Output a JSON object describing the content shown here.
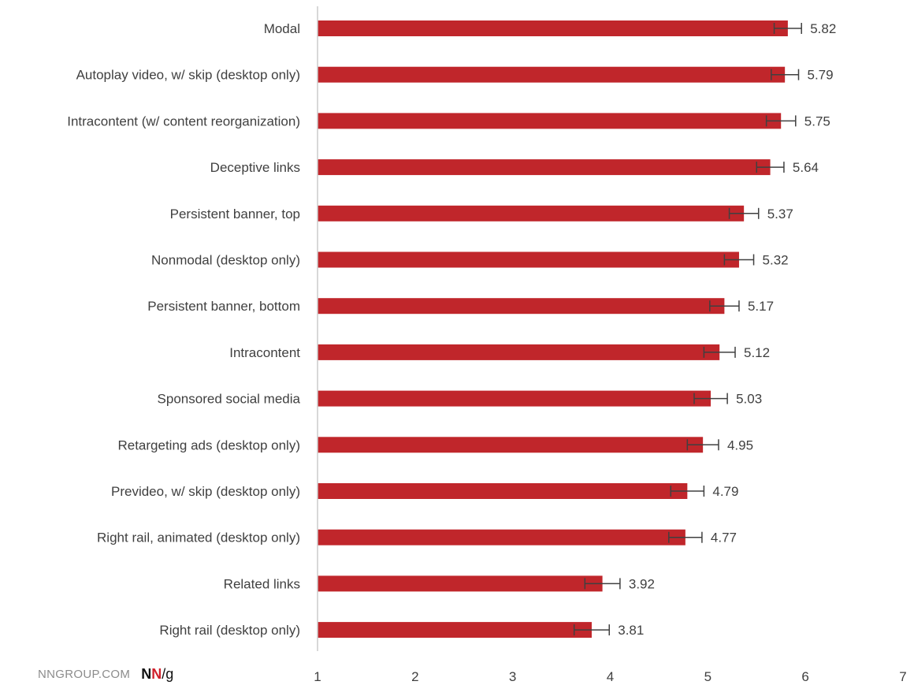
{
  "chart_data": {
    "type": "bar",
    "orientation": "horizontal",
    "categories": [
      "Modal",
      "Autoplay video, w/ skip (desktop only)",
      "Intracontent (w/ content reorganization)",
      "Deceptive links",
      "Persistent banner, top",
      "Nonmodal (desktop only)",
      "Persistent banner, bottom",
      "Intracontent",
      "Sponsored social media",
      "Retargeting ads (desktop only)",
      "Prevideo, w/ skip (desktop only)",
      "Right rail, animated (desktop only)",
      "Related links",
      "Right rail (desktop only)"
    ],
    "values": [
      5.82,
      5.79,
      5.75,
      5.64,
      5.37,
      5.32,
      5.17,
      5.12,
      5.03,
      4.95,
      4.79,
      4.77,
      3.92,
      3.81
    ],
    "value_labels": [
      "5.82",
      "5.79",
      "5.75",
      "5.64",
      "5.37",
      "5.32",
      "5.17",
      "5.12",
      "5.03",
      "4.95",
      "4.79",
      "4.77",
      "3.92",
      "3.81"
    ],
    "error": [
      0.14,
      0.14,
      0.15,
      0.14,
      0.15,
      0.15,
      0.15,
      0.16,
      0.17,
      0.16,
      0.17,
      0.17,
      0.18,
      0.18
    ],
    "xlim": [
      1,
      7
    ],
    "xticks": [
      "1",
      "2",
      "3",
      "4",
      "5",
      "6",
      "7"
    ],
    "grid": false,
    "legend": "none",
    "bar_color": "#c0262b",
    "error_bar_color": "#404040"
  },
  "footer": {
    "source": "NNGROUP.COM",
    "logo_n1": "N",
    "logo_n2": "N",
    "logo_g": "/g",
    "logo_accent_color": "#d0202b"
  }
}
